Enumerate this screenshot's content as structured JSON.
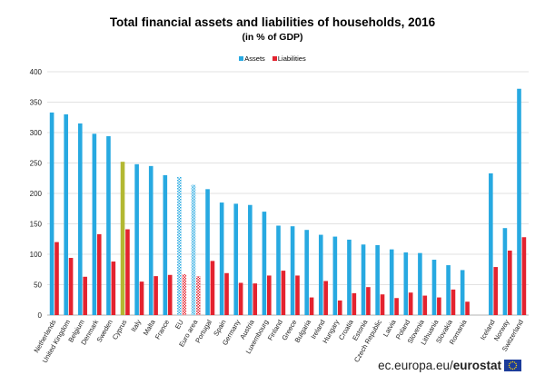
{
  "chart_data": {
    "type": "bar",
    "title": "Total financial assets and liabilities of households, 2016",
    "subtitle": "(in % of GDP)",
    "xlabel": "",
    "ylabel": "",
    "ylim": [
      0,
      400
    ],
    "yticks": [
      "0",
      "50",
      "100",
      "150",
      "200",
      "250",
      "300",
      "350",
      "400"
    ],
    "grid": true,
    "legend_position": "top-center",
    "categories": [
      "Netherlands",
      "United Kingdom",
      "Belgium",
      "Denmark",
      "Sweden",
      "Cyprus",
      "Italy",
      "Malta",
      "France",
      "EU",
      "Euro area",
      "Portugal",
      "Spain",
      "Germany",
      "Austria",
      "Luxembourg",
      "Finland",
      "Greece",
      "Bulgaria",
      "Ireland",
      "Hungary",
      "Croatia",
      "Estonia",
      "Czech Republic",
      "Latvia",
      "Poland",
      "Slovenia",
      "Lithuania",
      "Slovakia",
      "Romania",
      "",
      "Iceland",
      "Norway",
      "Switzerland"
    ],
    "series": [
      {
        "name": "Assets",
        "color": "#27a9e1",
        "values": [
          333,
          330,
          315,
          298,
          294,
          252,
          248,
          245,
          230,
          227,
          214,
          207,
          185,
          183,
          181,
          170,
          147,
          146,
          140,
          132,
          129,
          124,
          116,
          115,
          108,
          103,
          102,
          91,
          82,
          74,
          null,
          233,
          143,
          372
        ]
      },
      {
        "name": "Liabilities",
        "color": "#e3232f",
        "values": [
          120,
          94,
          63,
          133,
          88,
          141,
          55,
          64,
          66,
          67,
          64,
          89,
          69,
          53,
          52,
          65,
          73,
          65,
          29,
          56,
          24,
          36,
          46,
          34,
          28,
          37,
          32,
          29,
          42,
          22,
          null,
          79,
          106,
          128
        ]
      }
    ],
    "highlight": {
      "Cyprus": {
        "assets_color": "#b3b832"
      },
      "EU": {
        "style": "hatched"
      },
      "Euro area": {
        "style": "hatched"
      }
    }
  },
  "footer": {
    "domain": "ec.europa.eu/",
    "brand": "eurostat"
  },
  "icons": {
    "flag": "eu-flag-icon"
  }
}
